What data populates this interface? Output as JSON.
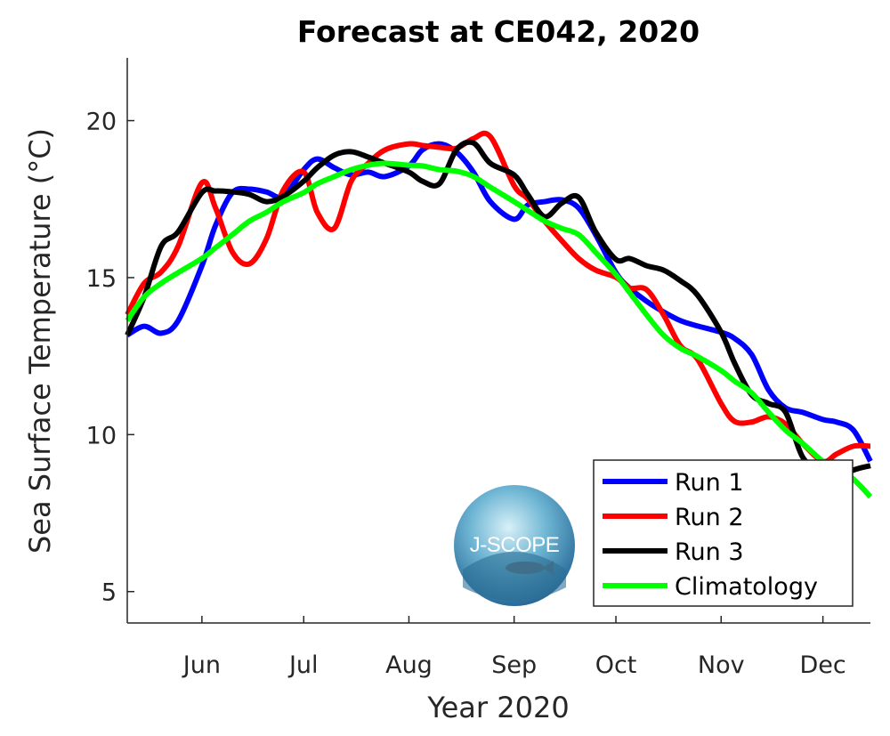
{
  "chart_data": {
    "type": "line",
    "title": "Forecast at CE042, 2020",
    "xlabel": "Year 2020",
    "ylabel": "Sea Surface Temperature (°C)",
    "xlim": [
      "2020-05-10",
      "2020-12-15"
    ],
    "ylim": [
      4,
      22
    ],
    "xticks": [
      {
        "date": "2020-06-01",
        "label": "Jun"
      },
      {
        "date": "2020-07-01",
        "label": "Jul"
      },
      {
        "date": "2020-08-01",
        "label": "Aug"
      },
      {
        "date": "2020-09-01",
        "label": "Sep"
      },
      {
        "date": "2020-10-01",
        "label": "Oct"
      },
      {
        "date": "2020-11-01",
        "label": "Nov"
      },
      {
        "date": "2020-12-01",
        "label": "Dec"
      }
    ],
    "yticks": [
      5,
      10,
      15,
      20
    ],
    "grid": false,
    "legend_position": "bottom-right",
    "x": [
      "2020-05-10",
      "2020-05-15",
      "2020-05-20",
      "2020-05-25",
      "2020-06-01",
      "2020-06-05",
      "2020-06-10",
      "2020-06-15",
      "2020-06-20",
      "2020-06-25",
      "2020-07-01",
      "2020-07-05",
      "2020-07-10",
      "2020-07-15",
      "2020-07-20",
      "2020-07-25",
      "2020-08-01",
      "2020-08-05",
      "2020-08-10",
      "2020-08-15",
      "2020-08-20",
      "2020-08-25",
      "2020-09-01",
      "2020-09-05",
      "2020-09-10",
      "2020-09-15",
      "2020-09-20",
      "2020-09-25",
      "2020-10-01",
      "2020-10-05",
      "2020-10-10",
      "2020-10-15",
      "2020-10-20",
      "2020-10-25",
      "2020-11-01",
      "2020-11-05",
      "2020-11-10",
      "2020-11-15",
      "2020-11-20",
      "2020-11-25",
      "2020-12-01",
      "2020-12-05",
      "2020-12-10",
      "2020-12-15"
    ],
    "series": [
      {
        "name": "Run 1",
        "color": "#0000ff",
        "values": [
          13.17,
          13.45,
          13.23,
          13.63,
          15.38,
          16.66,
          17.71,
          17.82,
          17.73,
          17.59,
          18.44,
          18.78,
          18.5,
          18.27,
          18.36,
          18.22,
          18.56,
          19.07,
          19.26,
          19.0,
          18.36,
          17.42,
          16.86,
          17.31,
          17.42,
          17.48,
          17.22,
          16.37,
          15.16,
          14.67,
          14.25,
          13.91,
          13.63,
          13.46,
          13.26,
          13.06,
          12.55,
          11.42,
          10.85,
          10.71,
          10.48,
          10.4,
          10.14,
          9.15
        ]
      },
      {
        "name": "Run 2",
        "color": "#ff0000",
        "values": [
          13.82,
          14.82,
          15.18,
          16.0,
          18.02,
          17.22,
          15.81,
          15.44,
          16.23,
          17.79,
          18.36,
          17.08,
          16.57,
          18.07,
          18.64,
          19.07,
          19.26,
          19.21,
          19.15,
          19.12,
          19.43,
          19.49,
          17.93,
          17.51,
          16.8,
          16.18,
          15.61,
          15.24,
          15.01,
          14.67,
          14.62,
          13.82,
          12.83,
          12.41,
          10.99,
          10.42,
          10.4,
          10.57,
          10.34,
          9.72,
          9.15,
          9.38,
          9.63,
          9.63
        ]
      },
      {
        "name": "Run 3",
        "color": "#000000",
        "values": [
          13.17,
          14.39,
          16.0,
          16.46,
          17.71,
          17.76,
          17.73,
          17.65,
          17.42,
          17.59,
          18.07,
          18.5,
          18.9,
          19.01,
          18.84,
          18.64,
          18.36,
          18.07,
          17.99,
          19.07,
          19.29,
          18.64,
          18.27,
          17.65,
          16.94,
          17.37,
          17.56,
          16.46,
          15.58,
          15.61,
          15.38,
          15.24,
          14.9,
          14.45,
          13.26,
          12.27,
          11.27,
          10.99,
          10.71,
          9.29,
          8.73,
          8.58,
          8.87,
          9.01
        ]
      },
      {
        "name": "Climatology",
        "color": "#00ff00",
        "values": [
          13.63,
          14.39,
          14.82,
          15.16,
          15.61,
          15.95,
          16.37,
          16.8,
          17.08,
          17.42,
          17.71,
          17.99,
          18.22,
          18.44,
          18.58,
          18.64,
          18.58,
          18.56,
          18.44,
          18.39,
          18.22,
          17.88,
          17.42,
          17.14,
          16.8,
          16.57,
          16.37,
          15.81,
          15.1,
          14.53,
          13.82,
          13.17,
          12.75,
          12.49,
          12.04,
          11.7,
          11.33,
          10.71,
          10.14,
          9.72,
          9.15,
          8.95,
          8.58,
          8.02
        ]
      }
    ]
  },
  "logo": {
    "text": "J-SCOPE"
  }
}
